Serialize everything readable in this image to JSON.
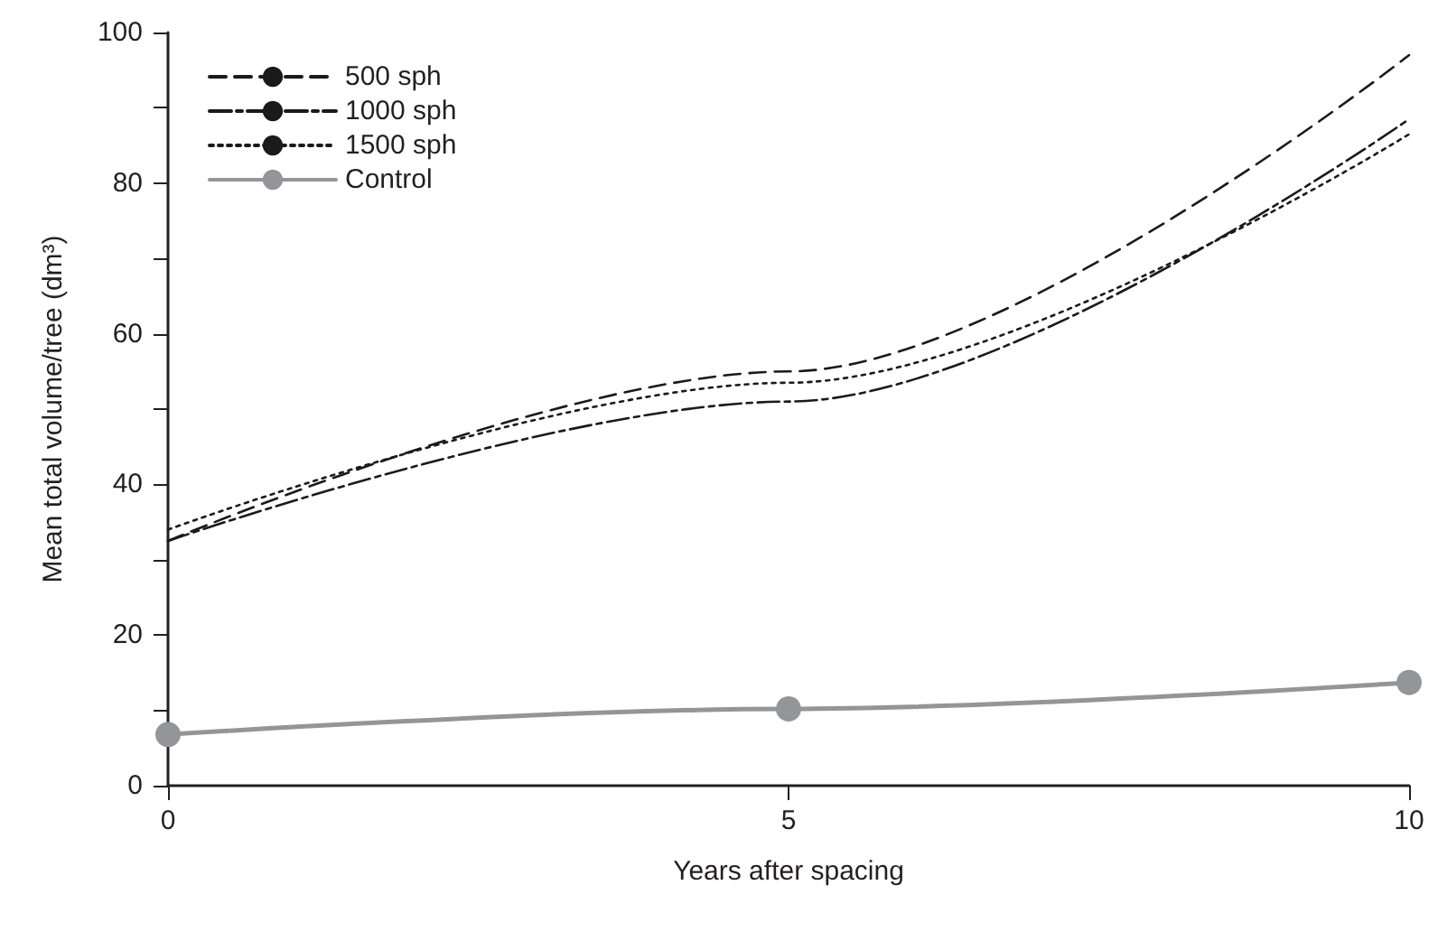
{
  "chart_data": {
    "type": "line",
    "xlabel": "Years after spacing",
    "ylabel": "Mean total volume/tree (dm³)",
    "x": [
      0,
      5,
      10
    ],
    "xlim": [
      0,
      10
    ],
    "xticks": [
      0,
      5,
      10
    ],
    "ylim": [
      0,
      100
    ],
    "yticks": [
      0,
      {
        "value": 10,
        "label": null
      },
      20,
      {
        "value": 30,
        "label": null
      },
      40,
      {
        "value": 50,
        "label": null
      },
      60,
      {
        "value": 70,
        "label": null
      },
      80,
      {
        "value": 90,
        "label": null
      },
      100
    ],
    "grid": false,
    "legend": "top left",
    "series": [
      {
        "name": "500 sph",
        "color": "#1a1a1a",
        "line_style": "dashed",
        "marker": "none",
        "values": [
          32.5,
          55,
          97
        ]
      },
      {
        "name": "1000 sph",
        "color": "#1a1a1a",
        "line_style": "dashdot",
        "marker": "none",
        "values": [
          32.5,
          51,
          88.5
        ]
      },
      {
        "name": "1500 sph",
        "color": "#1a1a1a",
        "line_style": "dotted",
        "marker": "none",
        "values": [
          34,
          53.5,
          86.5
        ]
      },
      {
        "name": "Control",
        "color": "#939598",
        "line_style": "solid",
        "marker": "circle",
        "values": [
          6.8,
          10.2,
          13.7
        ]
      }
    ]
  }
}
